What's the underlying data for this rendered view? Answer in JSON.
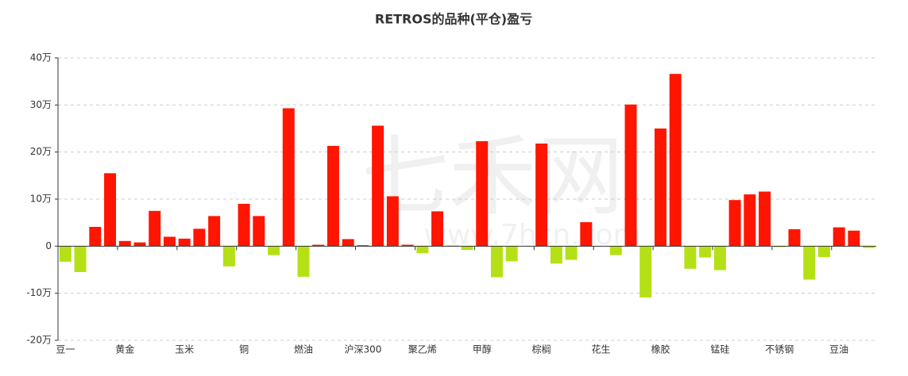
{
  "chart_data": {
    "type": "bar",
    "title": "RETROS的品种(平仓)盈亏",
    "watermark": [
      "七禾网",
      "www.7hcn.com"
    ],
    "categories": [
      "豆一",
      null,
      null,
      null,
      "黄金",
      null,
      null,
      null,
      "玉米",
      null,
      null,
      null,
      "铜",
      null,
      null,
      null,
      "燃油",
      null,
      null,
      null,
      "沪深300",
      null,
      null,
      null,
      "聚乙烯",
      null,
      null,
      null,
      "甲醇",
      null,
      null,
      null,
      "棕榈",
      null,
      null,
      null,
      "花生",
      null,
      null,
      null,
      "橡胶",
      null,
      null,
      null,
      "锰硅",
      null,
      null,
      null,
      "不锈钢",
      null,
      null,
      null,
      "豆油",
      null,
      null
    ],
    "values": [
      -3.3,
      -5.5,
      4.1,
      15.5,
      1.1,
      0.8,
      7.5,
      2.0,
      1.6,
      3.7,
      6.4,
      -4.3,
      9.0,
      6.4,
      -1.9,
      29.3,
      -6.5,
      0.3,
      21.3,
      1.5,
      0.2,
      25.6,
      10.6,
      0.3,
      -1.5,
      7.4,
      0.1,
      -0.8,
      22.3,
      -6.6,
      -3.2,
      0,
      21.8,
      -3.7,
      -2.9,
      5.1,
      0,
      -1.9,
      30.1,
      -10.9,
      25.0,
      36.6,
      -4.8,
      -2.4,
      -5.1,
      9.8,
      11.0,
      11.6,
      -0.2,
      3.6,
      -7.1,
      -2.3,
      4.0,
      3.3,
      -0.4
    ],
    "positive_color": "#ff1500",
    "negative_color": "#b5e015",
    "ylim": [
      -20,
      40
    ],
    "yticks": [
      {
        "value": -20,
        "label": "-20万"
      },
      {
        "value": -10,
        "label": "-10万"
      },
      {
        "value": 0,
        "label": "0"
      },
      {
        "value": 10,
        "label": "10万"
      },
      {
        "value": 20,
        "label": "20万"
      },
      {
        "value": 30,
        "label": "30万"
      },
      {
        "value": 40,
        "label": "40万"
      }
    ],
    "grid": true
  }
}
